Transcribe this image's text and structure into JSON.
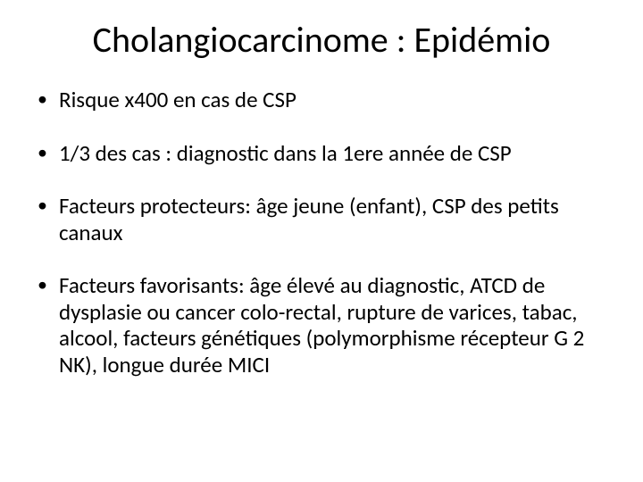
{
  "slide": {
    "title": "Cholangiocarcinome : Epidémio",
    "title_fontsize": 40,
    "bullets": [
      "Risque x400 en cas de CSP",
      "1/3 des cas : diagnostic dans la 1ere année de CSP",
      "Facteurs protecteurs: âge jeune (enfant), CSP des petits canaux",
      "Facteurs favorisants: âge élevé au diagnostic, ATCD de dysplasie ou cancer colo-rectal, rupture de varices, tabac, alcool, facteurs génétiques (polymorphisme récepteur G 2 NK), longue durée MICI"
    ],
    "bullet_fontsize": 25,
    "text_color": "#000000",
    "background_color": "#ffffff"
  }
}
